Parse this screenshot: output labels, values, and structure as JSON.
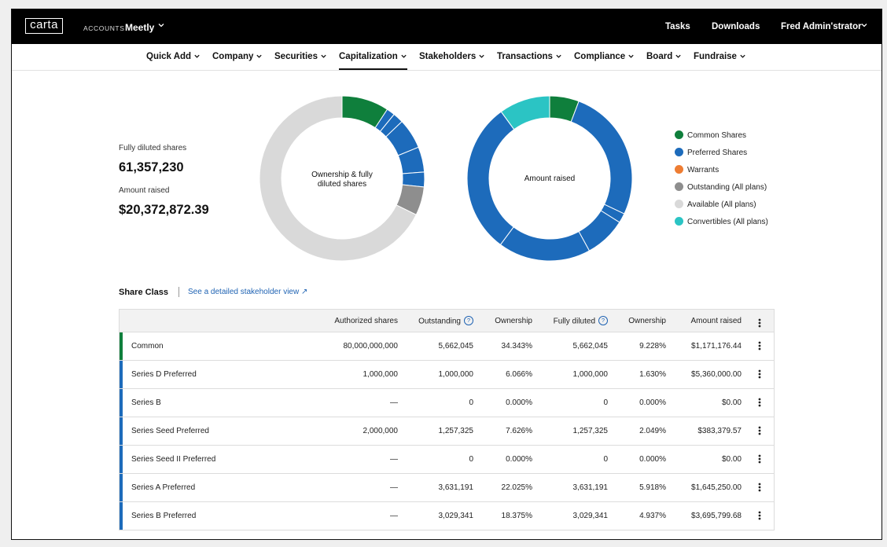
{
  "app": {
    "logo": "carta",
    "accounts_label": "ACCOUNTS",
    "account_name": "Meetly",
    "top_links": [
      "Tasks",
      "Downloads",
      "Fred Admin'strator"
    ]
  },
  "nav": {
    "items": [
      "Quick Add",
      "Company",
      "Securities",
      "Capitalization",
      "Stakeholders",
      "Transactions",
      "Compliance",
      "Board",
      "Fundraise"
    ],
    "active": "Capitalization"
  },
  "summary": {
    "fd_label": "Fully diluted shares",
    "fd_value": "61,357,230",
    "raised_label": "Amount raised",
    "raised_value": "$20,372,872.39"
  },
  "chart_data": [
    {
      "type": "pie",
      "style": "donut",
      "title": "Ownership & fully diluted shares",
      "slices": [
        {
          "label": "Common Shares",
          "value": 9.228,
          "color": "#0f7f3c"
        },
        {
          "label": "Preferred Shares",
          "value": 1.63,
          "color": "#1d6bbb"
        },
        {
          "label": "Preferred Shares",
          "value": 2.049,
          "color": "#1d6bbb"
        },
        {
          "label": "Preferred Shares",
          "value": 5.918,
          "color": "#1d6bbb"
        },
        {
          "label": "Preferred Shares",
          "value": 4.937,
          "color": "#1d6bbb"
        },
        {
          "label": "Preferred Shares",
          "value": 2.9,
          "color": "#1d6bbb"
        },
        {
          "label": "Outstanding (All plans)",
          "value": 5.6,
          "color": "#8e8e8e"
        },
        {
          "label": "Available (All plans)",
          "value": 67.738,
          "color": "#d9d9d9"
        }
      ]
    },
    {
      "type": "pie",
      "style": "donut",
      "title": "Amount raised",
      "slices": [
        {
          "label": "Common Shares",
          "value": 5.75,
          "color": "#0f7f3c"
        },
        {
          "label": "Preferred Shares",
          "value": 26.31,
          "color": "#1d6bbb"
        },
        {
          "label": "Preferred Shares",
          "value": 1.88,
          "color": "#1d6bbb"
        },
        {
          "label": "Preferred Shares",
          "value": 8.08,
          "color": "#1d6bbb"
        },
        {
          "label": "Preferred Shares",
          "value": 18.14,
          "color": "#1d6bbb"
        },
        {
          "label": "Preferred Shares",
          "value": 29.84,
          "color": "#1d6bbb"
        },
        {
          "label": "Convertibles (All plans)",
          "value": 10.0,
          "color": "#2bc4c4"
        }
      ]
    }
  ],
  "legend": [
    {
      "label": "Common Shares",
      "color": "#0f7f3c"
    },
    {
      "label": "Preferred Shares",
      "color": "#1d6bbb"
    },
    {
      "label": "Warrants",
      "color": "#ee7d33"
    },
    {
      "label": "Outstanding (All plans)",
      "color": "#8e8e8e"
    },
    {
      "label": "Available (All plans)",
      "color": "#d9d9d9"
    },
    {
      "label": "Convertibles (All plans)",
      "color": "#2bc4c4"
    }
  ],
  "share_class": {
    "title": "Share Class",
    "link": "See a detailed stakeholder view ↗",
    "headers": [
      "Authorized shares",
      "Outstanding",
      "Ownership",
      "Fully diluted",
      "Ownership",
      "Amount raised"
    ],
    "rows": [
      {
        "name": "Common",
        "color": "#0f7f3c",
        "cells": [
          "80,000,000,000",
          "5,662,045",
          "34.343%",
          "5,662,045",
          "9.228%",
          "$1,171,176.44"
        ]
      },
      {
        "name": "Series D Preferred",
        "color": "#1d6bbb",
        "cells": [
          "1,000,000",
          "1,000,000",
          "6.066%",
          "1,000,000",
          "1.630%",
          "$5,360,000.00"
        ]
      },
      {
        "name": "Series B",
        "color": "#1d6bbb",
        "cells": [
          "—",
          "0",
          "0.000%",
          "0",
          "0.000%",
          "$0.00"
        ]
      },
      {
        "name": "Series Seed Preferred",
        "color": "#1d6bbb",
        "cells": [
          "2,000,000",
          "1,257,325",
          "7.626%",
          "1,257,325",
          "2.049%",
          "$383,379.57"
        ]
      },
      {
        "name": "Series Seed II Preferred",
        "color": "#1d6bbb",
        "cells": [
          "—",
          "0",
          "0.000%",
          "0",
          "0.000%",
          "$0.00"
        ]
      },
      {
        "name": "Series A Preferred",
        "color": "#1d6bbb",
        "cells": [
          "—",
          "3,631,191",
          "22.025%",
          "3,631,191",
          "5.918%",
          "$1,645,250.00"
        ]
      },
      {
        "name": "Series B Preferred",
        "color": "#1d6bbb",
        "cells": [
          "—",
          "3,029,341",
          "18.375%",
          "3,029,341",
          "4.937%",
          "$3,695,799.68"
        ]
      }
    ]
  }
}
